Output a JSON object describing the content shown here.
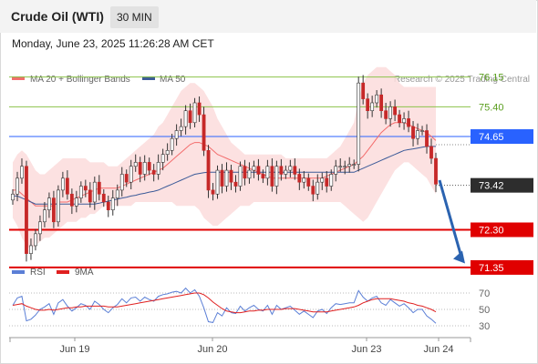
{
  "header": {
    "title": "Crude Oil (WTI)",
    "timeframe": "30 MIN",
    "timestamp": "Monday, June 23, 2025 11:26:28 AM CET"
  },
  "colors": {
    "ma20": "#f36c6c",
    "bollinger_fill": "#fcdcdc",
    "ma50": "#3b5a98",
    "candle": "#c62828",
    "wick": "#333333",
    "resistance_green": "#8bc34a",
    "pivot_blue": "#2962ff",
    "support_red": "#e00000",
    "arrow": "#2b63b0",
    "rsi": "#5b7fd6",
    "rsi_9ma": "#e02020",
    "price_box": "#2d2d2d"
  },
  "chart_data": [
    {
      "type": "line",
      "title": "Crude Oil (WTI)",
      "legend": [
        {
          "label": "MA 20 + Bollinger Bands",
          "color": "#f36c6c"
        },
        {
          "label": "MA 50",
          "color": "#3b5a98"
        }
      ],
      "legend_position": "top-left",
      "credit": "Research © 2025 Trading Central",
      "x_tick_labels": [
        "Jun 19",
        "Jun 20",
        "Jun 23",
        "Jun 24"
      ],
      "ylim": [
        71.0,
        78.5
      ],
      "levels": [
        {
          "value": 76.15,
          "label": "76.15",
          "kind": "resistance-2",
          "color": "#8bc34a"
        },
        {
          "value": 75.4,
          "label": "75.40",
          "kind": "resistance-1",
          "color": "#8bc34a"
        },
        {
          "value": 74.65,
          "label": "74.65",
          "kind": "pivot",
          "color": "#2962ff"
        },
        {
          "value": 72.3,
          "label": "72.30",
          "kind": "support-1",
          "color": "#e00000"
        },
        {
          "value": 71.35,
          "label": "71.35",
          "kind": "support-2",
          "color": "#e00000"
        }
      ],
      "last_price": {
        "value": 73.42,
        "label": "73.42"
      },
      "close_series": [
        73.2,
        73.6,
        73.9,
        71.7,
        71.9,
        72.2,
        72.5,
        72.8,
        73.1,
        72.5,
        73.3,
        73.6,
        73.2,
        72.9,
        73.1,
        73.4,
        73.3,
        73.0,
        73.5,
        73.2,
        73.0,
        72.8,
        73.1,
        73.3,
        73.7,
        73.5,
        73.9,
        74.0,
        73.7,
        74.0,
        73.8,
        73.7,
        74.0,
        74.2,
        74.3,
        74.6,
        74.8,
        74.9,
        75.3,
        75.0,
        75.5,
        75.2,
        74.3,
        73.3,
        73.2,
        73.8,
        73.4,
        73.8,
        73.5,
        73.4,
        73.9,
        73.6,
        73.8,
        73.9,
        73.7,
        73.6,
        73.9,
        73.4,
        73.9,
        73.7,
        73.8,
        73.9,
        73.7,
        73.5,
        73.6,
        73.4,
        73.2,
        73.5,
        73.6,
        73.4,
        73.7,
        73.9,
        73.9,
        73.9,
        73.95,
        73.95,
        76.0,
        75.6,
        75.3,
        75.5,
        75.7,
        75.3,
        75.1,
        75.4,
        75.2,
        75.0,
        75.1,
        74.9,
        74.6,
        74.8,
        74.8,
        74.4,
        74.1,
        73.45
      ],
      "ma20_series": [
        73.3,
        73.3,
        73.2,
        73.1,
        73.0,
        72.9,
        72.9,
        72.9,
        72.9,
        72.9,
        73.0,
        73.0,
        73.0,
        73.05,
        73.1,
        73.15,
        73.2,
        73.25,
        73.3,
        73.35,
        73.35,
        73.35,
        73.35,
        73.35,
        73.4,
        73.45,
        73.5,
        73.55,
        73.6,
        73.65,
        73.7,
        73.75,
        73.8,
        73.85,
        73.95,
        74.05,
        74.15,
        74.25,
        74.35,
        74.45,
        74.5,
        74.5,
        74.45,
        74.4,
        74.3,
        74.2,
        74.15,
        74.1,
        74.05,
        74.0,
        73.95,
        73.9,
        73.85,
        73.8,
        73.75,
        73.7,
        73.65,
        73.6,
        73.6,
        73.6,
        73.6,
        73.6,
        73.6,
        73.6,
        73.6,
        73.6,
        73.6,
        73.6,
        73.6,
        73.65,
        73.7,
        73.75,
        73.8,
        73.85,
        73.9,
        73.95,
        74.05,
        74.15,
        74.3,
        74.45,
        74.6,
        74.75,
        74.85,
        74.95,
        75.0,
        75.0,
        75.0,
        74.95,
        74.9,
        74.85,
        74.8,
        74.75,
        74.65,
        74.55
      ],
      "bb_upper_series": [
        74.0,
        74.2,
        74.3,
        74.2,
        74.0,
        73.8,
        73.7,
        73.7,
        73.8,
        73.9,
        74.0,
        74.1,
        74.1,
        74.1,
        74.1,
        74.1,
        74.1,
        74.0,
        74.0,
        74.0,
        74.0,
        73.9,
        73.9,
        73.9,
        74.0,
        74.1,
        74.2,
        74.3,
        74.4,
        74.5,
        74.6,
        74.7,
        74.9,
        75.0,
        75.2,
        75.4,
        75.6,
        75.8,
        75.9,
        76.0,
        76.0,
        75.9,
        75.8,
        75.6,
        75.4,
        75.1,
        74.9,
        74.7,
        74.5,
        74.4,
        74.3,
        74.2,
        74.2,
        74.2,
        74.2,
        74.2,
        74.2,
        74.2,
        74.2,
        74.2,
        74.1,
        74.1,
        74.1,
        74.1,
        74.1,
        74.1,
        74.1,
        74.1,
        74.1,
        74.1,
        74.2,
        74.3,
        74.4,
        74.6,
        74.8,
        75.0,
        75.6,
        76.0,
        76.2,
        76.3,
        76.4,
        76.4,
        76.4,
        76.3,
        76.2,
        76.0,
        75.9,
        75.9,
        75.9,
        75.9,
        75.9,
        75.9,
        75.9,
        75.9
      ],
      "bb_lower_series": [
        72.6,
        72.4,
        72.1,
        71.9,
        71.8,
        71.9,
        72.0,
        72.1,
        72.1,
        72.2,
        72.3,
        72.4,
        72.5,
        72.5,
        72.5,
        72.6,
        72.6,
        72.7,
        72.7,
        72.8,
        72.9,
        72.9,
        72.9,
        72.9,
        72.9,
        72.9,
        72.9,
        73.0,
        73.0,
        73.0,
        73.0,
        73.0,
        73.0,
        73.0,
        73.0,
        73.0,
        72.9,
        72.9,
        72.9,
        72.9,
        72.9,
        72.8,
        72.6,
        72.5,
        72.4,
        72.4,
        72.5,
        72.6,
        72.7,
        72.8,
        72.9,
        72.9,
        72.9,
        73.0,
        73.0,
        73.0,
        73.0,
        73.0,
        73.0,
        73.0,
        73.0,
        73.0,
        73.0,
        73.0,
        73.0,
        73.0,
        73.0,
        73.0,
        73.0,
        73.0,
        73.0,
        73.0,
        73.0,
        72.9,
        72.8,
        72.7,
        72.6,
        72.5,
        72.6,
        72.8,
        73.0,
        73.2,
        73.4,
        73.6,
        73.8,
        73.9,
        74.0,
        74.0,
        73.9,
        73.8,
        73.7,
        73.6,
        73.4,
        73.2
      ],
      "ma50_series": [
        73.15,
        73.15,
        73.1,
        73.05,
        73.0,
        72.95,
        72.95,
        72.95,
        72.95,
        72.95,
        72.95,
        72.95,
        72.95,
        72.95,
        72.95,
        72.95,
        72.95,
        72.95,
        72.95,
        72.97,
        73.0,
        73.02,
        73.05,
        73.07,
        73.1,
        73.12,
        73.15,
        73.17,
        73.2,
        73.22,
        73.25,
        73.27,
        73.3,
        73.35,
        73.4,
        73.45,
        73.5,
        73.55,
        73.6,
        73.65,
        73.7,
        73.72,
        73.74,
        73.75,
        73.75,
        73.75,
        73.75,
        73.75,
        73.75,
        73.75,
        73.75,
        73.75,
        73.75,
        73.75,
        73.75,
        73.75,
        73.75,
        73.75,
        73.75,
        73.75,
        73.75,
        73.75,
        73.75,
        73.75,
        73.75,
        73.75,
        73.75,
        73.75,
        73.75,
        73.75,
        73.75,
        73.75,
        73.75,
        73.75,
        73.75,
        73.75,
        73.8,
        73.85,
        73.9,
        73.95,
        74.0,
        74.05,
        74.1,
        74.15,
        74.2,
        74.25,
        74.3,
        74.32,
        74.34,
        74.36,
        74.38,
        74.4,
        74.4,
        74.4
      ]
    },
    {
      "type": "line",
      "legend": [
        {
          "label": "RSI",
          "color": "#5b7fd6"
        },
        {
          "label": "9MA",
          "color": "#e02020"
        }
      ],
      "legend_position": "top-left",
      "ylim": [
        25,
        80
      ],
      "y_ticks": [
        70,
        50,
        30
      ],
      "series": [
        {
          "name": "RSI",
          "values": [
            55,
            64,
            66,
            36,
            38,
            43,
            50,
            53,
            57,
            44,
            58,
            62,
            54,
            48,
            52,
            57,
            55,
            50,
            60,
            56,
            50,
            46,
            52,
            56,
            63,
            58,
            64,
            65,
            60,
            65,
            62,
            60,
            66,
            68,
            69,
            71,
            72,
            70,
            76,
            70,
            74,
            66,
            52,
            35,
            34,
            46,
            42,
            52,
            46,
            45,
            54,
            48,
            52,
            55,
            50,
            48,
            55,
            44,
            55,
            50,
            52,
            54,
            49,
            44,
            48,
            44,
            40,
            48,
            50,
            45,
            52,
            57,
            56,
            57,
            58,
            58,
            73,
            65,
            60,
            64,
            66,
            58,
            55,
            62,
            58,
            54,
            57,
            52,
            46,
            50,
            50,
            42,
            38,
            33
          ]
        },
        {
          "name": "9MA",
          "values": [
            55,
            56,
            57,
            54,
            52,
            50,
            49,
            49,
            50,
            49,
            50,
            51,
            52,
            52,
            53,
            53,
            54,
            54,
            54,
            54,
            54,
            53,
            53,
            53,
            54,
            55,
            56,
            57,
            58,
            59,
            60,
            61,
            62,
            63,
            64,
            65,
            66,
            67,
            68,
            69,
            70,
            70,
            68,
            64,
            59,
            55,
            51,
            48,
            47,
            46,
            46,
            47,
            48,
            48,
            49,
            49,
            50,
            50,
            50,
            50,
            51,
            51,
            51,
            50,
            49,
            48,
            47,
            47,
            47,
            47,
            48,
            49,
            50,
            51,
            52,
            53,
            55,
            58,
            60,
            62,
            63,
            63,
            63,
            63,
            62,
            61,
            60,
            58,
            57,
            55,
            54,
            52,
            50,
            47
          ]
        }
      ]
    }
  ]
}
